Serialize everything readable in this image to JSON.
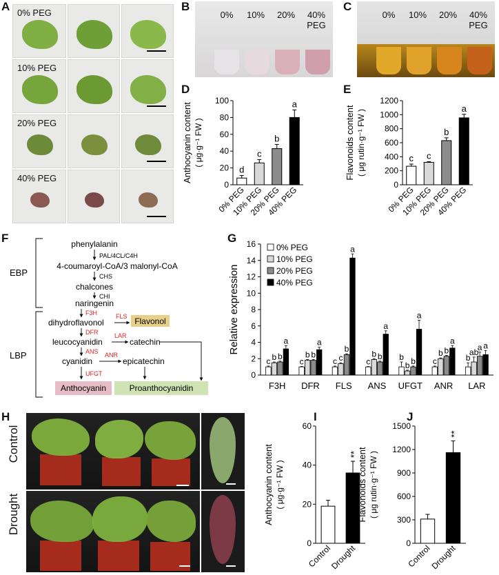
{
  "panels": {
    "A": "A",
    "B": "B",
    "C": "C",
    "D": "D",
    "E": "E",
    "F": "F",
    "G": "G",
    "H": "H",
    "I": "I",
    "J": "J"
  },
  "panel_A": {
    "row_labels": [
      "0% PEG",
      "10% PEG",
      "20% PEG",
      "40% PEG"
    ]
  },
  "panel_B": {
    "tube_labels": [
      "0%",
      "10%",
      "20%",
      "40%"
    ],
    "suffix": "PEG"
  },
  "panel_C": {
    "tube_labels": [
      "0%",
      "10%",
      "20%",
      "40%"
    ],
    "suffix": "PEG"
  },
  "panel_F": {
    "group_labels": {
      "ebp": "EBP",
      "lbp": "LBP"
    },
    "compounds": {
      "phenylalanin": "phenylalanin",
      "coumaroyl": "4-coumaroyl-CoA/3 malonyl-CoA",
      "chalcones": "chalcones",
      "naringenin": "naringenin",
      "dihydroflavonol": "dihydroflavonol",
      "flavonol": "Flavonol",
      "leucocyanidin": "leucocyanidin",
      "catechin": "catechin",
      "cyanidin": "cyanidin",
      "epicatechin": "epicatechin",
      "anthocyanin": "Anthocyanin",
      "proanthocyanidin": "Proanthocyanidin"
    },
    "enzymes": {
      "pal": "PAL/4CL/C4H",
      "chs": "CHS",
      "chi": "CHI",
      "f3h": "F3H",
      "fls": "FLS",
      "dfr": "DFR",
      "lar": "LAR",
      "ans": "ANS",
      "anr": "ANR",
      "ufgt": "UFGT"
    },
    "colors": {
      "enzyme_red": "#e02020",
      "flavonol_box": "#e7d08b",
      "anthocyanin_box": "#e6bcc6",
      "proanthocyanidin_box": "#cfe3b5"
    }
  },
  "panel_H": {
    "row_labels": [
      "Control",
      "Drought"
    ]
  },
  "chart_data": [
    {
      "id": "D",
      "type": "bar",
      "categories": [
        "0% PEG",
        "10% PEG",
        "20% PEG",
        "40% PEG"
      ],
      "values": [
        8,
        26,
        43,
        80
      ],
      "errors": [
        3,
        4,
        5,
        9
      ],
      "letters": [
        "d",
        "c",
        "b",
        "a"
      ],
      "colors": [
        "#ffffff",
        "#d9d9d9",
        "#8c8c8c",
        "#000000"
      ],
      "ylabel": "Anthocyanin content",
      "ylabel2": "( μg·g⁻¹ FW )",
      "ylim": [
        0,
        100
      ],
      "yticks": [
        0,
        20,
        40,
        60,
        80,
        100
      ]
    },
    {
      "id": "E",
      "type": "bar",
      "categories": [
        "0% PEG",
        "10% PEG",
        "20% PEG",
        "40% PEG"
      ],
      "values": [
        265,
        320,
        630,
        955
      ],
      "errors": [
        30,
        10,
        40,
        50
      ],
      "letters": [
        "c",
        "c",
        "b",
        "a"
      ],
      "colors": [
        "#ffffff",
        "#d9d9d9",
        "#8c8c8c",
        "#000000"
      ],
      "ylabel": "Flavonoids content",
      "ylabel2": "( μg rutin·g⁻¹ FW )",
      "ylim": [
        0,
        1200
      ],
      "yticks": [
        0,
        200,
        400,
        600,
        800,
        1000,
        1200
      ]
    },
    {
      "id": "G",
      "type": "bar",
      "categories": [
        "F3H",
        "DFR",
        "FLS",
        "ANS",
        "UFGT",
        "ANR",
        "LAR"
      ],
      "series": [
        {
          "name": "0% PEG",
          "color": "#ffffff",
          "values": [
            1,
            1,
            1,
            1,
            1,
            1,
            1
          ],
          "errors": [
            0.1,
            0.05,
            0.1,
            0.05,
            0.6,
            0.1,
            0.5
          ],
          "letters": [
            "c",
            "c",
            "c",
            "c",
            "b",
            "c",
            "b"
          ]
        },
        {
          "name": "10% PEG",
          "color": "#d9d9d9",
          "values": [
            1.5,
            1.8,
            1.4,
            1.9,
            0.5,
            2.0,
            1.6
          ],
          "errors": [
            0.1,
            0.1,
            0.1,
            0.1,
            0.1,
            0.1,
            0.6
          ],
          "letters": [
            "b",
            "b",
            "c",
            "b",
            "b",
            "b",
            "ab"
          ]
        },
        {
          "name": "20% PEG",
          "color": "#8c8c8c",
          "values": [
            1.6,
            1.8,
            2.5,
            1.6,
            1.0,
            2.3,
            2.3
          ],
          "errors": [
            0.1,
            0.1,
            0.1,
            0.1,
            0.1,
            0.1,
            0.5
          ],
          "letters": [
            "b",
            "b",
            "b",
            "b",
            "b",
            "b",
            "a"
          ]
        },
        {
          "name": "40% PEG",
          "color": "#000000",
          "values": [
            3.2,
            3.1,
            14.3,
            5.0,
            5.6,
            3.3,
            2.5
          ],
          "errors": [
            0.4,
            0.3,
            0.5,
            0.4,
            1.1,
            0.3,
            0.5
          ],
          "letters": [
            "a",
            "a",
            "a",
            "a",
            "a",
            "a",
            "a"
          ]
        }
      ],
      "ylabel": "Relative expression",
      "ylim": [
        0,
        16
      ],
      "yticks": [
        0,
        2,
        4,
        6,
        8,
        10,
        12,
        14,
        16
      ],
      "legend_placement": "top-left"
    },
    {
      "id": "I",
      "type": "bar",
      "categories": [
        "Control",
        "Drought"
      ],
      "values": [
        19,
        36
      ],
      "errors": [
        3,
        6
      ],
      "colors": [
        "#ffffff",
        "#000000"
      ],
      "significance": [
        "",
        "**"
      ],
      "ylabel": "Anthocyanin content",
      "ylabel2": "( μg·g⁻¹ FW )",
      "ylim": [
        0,
        60
      ],
      "yticks": [
        0,
        20,
        40,
        60
      ]
    },
    {
      "id": "J",
      "type": "bar",
      "categories": [
        "Control",
        "Drought"
      ],
      "values": [
        310,
        1160
      ],
      "errors": [
        60,
        150
      ],
      "colors": [
        "#ffffff",
        "#000000"
      ],
      "significance": [
        "",
        "**"
      ],
      "ylabel": "Flavonoids content",
      "ylabel2": "( μg rutin·g⁻¹ FW )",
      "ylim": [
        0,
        1500
      ],
      "yticks": [
        0,
        300,
        600,
        900,
        1200,
        1500
      ]
    }
  ]
}
